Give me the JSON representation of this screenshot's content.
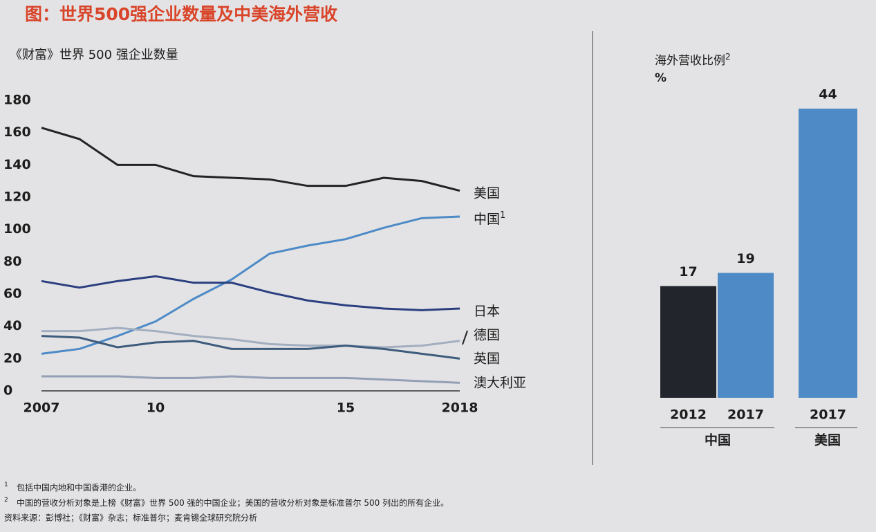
{
  "title": "图：世界500强企业数量及中美海外营收",
  "chart_data": [
    {
      "type": "line",
      "title": "《财富》世界 500 强企业数量",
      "x": [
        2007,
        2008,
        2009,
        2010,
        2011,
        2012,
        2013,
        2014,
        2015,
        2016,
        2017,
        2018
      ],
      "xlim": [
        2007,
        2018
      ],
      "xticks": [
        2007,
        {
          "value": 2010,
          "label": "10"
        },
        {
          "value": 2015,
          "label": "15"
        },
        2018
      ],
      "ylim": [
        0,
        180
      ],
      "yticks": [
        0,
        20,
        40,
        60,
        80,
        100,
        120,
        140,
        160,
        180
      ],
      "series": [
        {
          "name": "美国",
          "color": "#222326",
          "values": [
            163,
            156,
            140,
            140,
            133,
            132,
            131,
            127,
            127,
            132,
            130,
            124
          ]
        },
        {
          "name": "中国",
          "name_sup": "1",
          "color": "#4d8ac6",
          "values": [
            23,
            26,
            34,
            43,
            57,
            69,
            85,
            90,
            94,
            101,
            107,
            108
          ]
        },
        {
          "name": "日本",
          "color": "#2b3f80",
          "values": [
            68,
            64,
            68,
            71,
            67,
            67,
            61,
            56,
            53,
            51,
            50,
            51
          ]
        },
        {
          "name": "德国",
          "color": "#a3aec0",
          "values": [
            37,
            37,
            39,
            37,
            34,
            32,
            29,
            28,
            28,
            27,
            28,
            31
          ]
        },
        {
          "name": "英国",
          "color": "#3d5b7c",
          "values": [
            34,
            33,
            27,
            30,
            31,
            26,
            26,
            26,
            28,
            26,
            23,
            20
          ]
        },
        {
          "name": "澳大利亚",
          "color": "#929fb4",
          "values": [
            9,
            9,
            9,
            8,
            8,
            9,
            8,
            8,
            8,
            7,
            6,
            5
          ]
        }
      ]
    },
    {
      "type": "bar",
      "title": "海外营收比例",
      "title_sup": "2",
      "unit": "%",
      "categories": [
        "2012",
        "2017",
        "2017"
      ],
      "values": [
        17,
        19,
        44
      ],
      "colors": [
        "#22252c",
        "#4d8ac6",
        "#4d8ac6"
      ],
      "group_labels": [
        "中国",
        "美国"
      ]
    }
  ],
  "footnotes": [
    {
      "mark": "1",
      "text": "包括中国内地和中国香港的企业。"
    },
    {
      "mark": "2",
      "text": "中国的营收分析对象是上榜《财富》世界 500 强的中国企业；美国的营收分析对象是标准普尔 500 列出的所有企业。"
    }
  ],
  "source": "资料来源：彭博社；《财富》杂志；标准普尔；麦肯锡全球研究院分析"
}
